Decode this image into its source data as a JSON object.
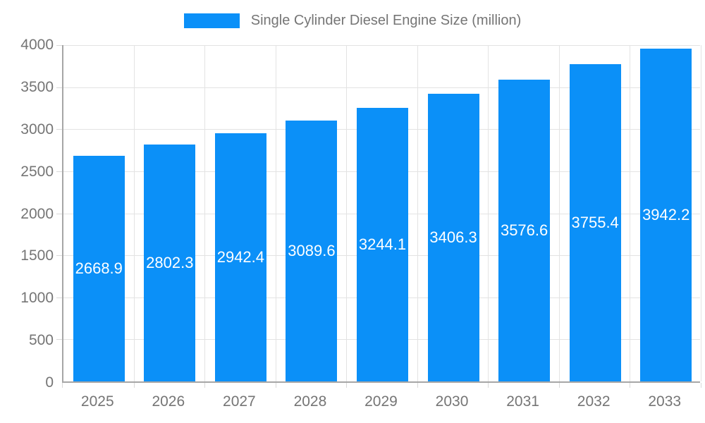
{
  "legend": {
    "label": "Single Cylinder Diesel Engine Size (million)"
  },
  "chart_data": {
    "type": "bar",
    "title": "Single Cylinder Diesel Engine Size (million)",
    "categories": [
      "2025",
      "2026",
      "2027",
      "2028",
      "2029",
      "2030",
      "2031",
      "2032",
      "2033"
    ],
    "values": [
      2668.9,
      2802.3,
      2942.4,
      3089.6,
      3244.1,
      3406.3,
      3576.6,
      3755.4,
      3942.2
    ],
    "value_labels": [
      "2668.9",
      "2802.3",
      "2942.4",
      "3089.6",
      "3244.1",
      "3406.3",
      "3576.6",
      "3755.4",
      "3942.2"
    ],
    "xlabel": "",
    "ylabel": "",
    "ylim": [
      0,
      4000
    ],
    "ytick_step": 500,
    "ytick_labels": [
      "0",
      "500",
      "1000",
      "1500",
      "2000",
      "2500",
      "3000",
      "3500",
      "4000"
    ],
    "grid": true,
    "legend_position": "top",
    "colors": {
      "bar": "#0b90f8",
      "gridline": "#e3e3e3",
      "axis_line": "#a6a6a6",
      "tick": "#d9d9d9",
      "tick_label": "#757575",
      "legend_text": "#757575",
      "bar_value_text": "#ffffff"
    }
  }
}
